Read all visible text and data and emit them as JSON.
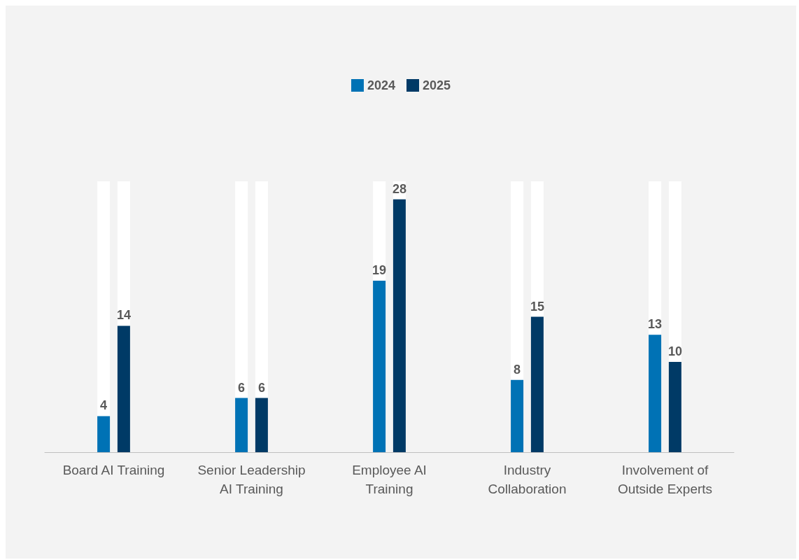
{
  "chart_data": {
    "type": "bar",
    "categories": [
      "Board AI Training",
      "Senior Leadership AI Training",
      "Employee AI Training",
      "Industry Collaboration",
      "Involvement of Outside Experts"
    ],
    "series": [
      {
        "name": "2024",
        "color": "#0072b5",
        "values": [
          4,
          6,
          19,
          8,
          13
        ]
      },
      {
        "name": "2025",
        "color": "#003a66",
        "values": [
          14,
          6,
          28,
          15,
          10
        ]
      }
    ],
    "tick_labels": "x",
    "data_labels": true,
    "legend": "top",
    "grid": false
  }
}
